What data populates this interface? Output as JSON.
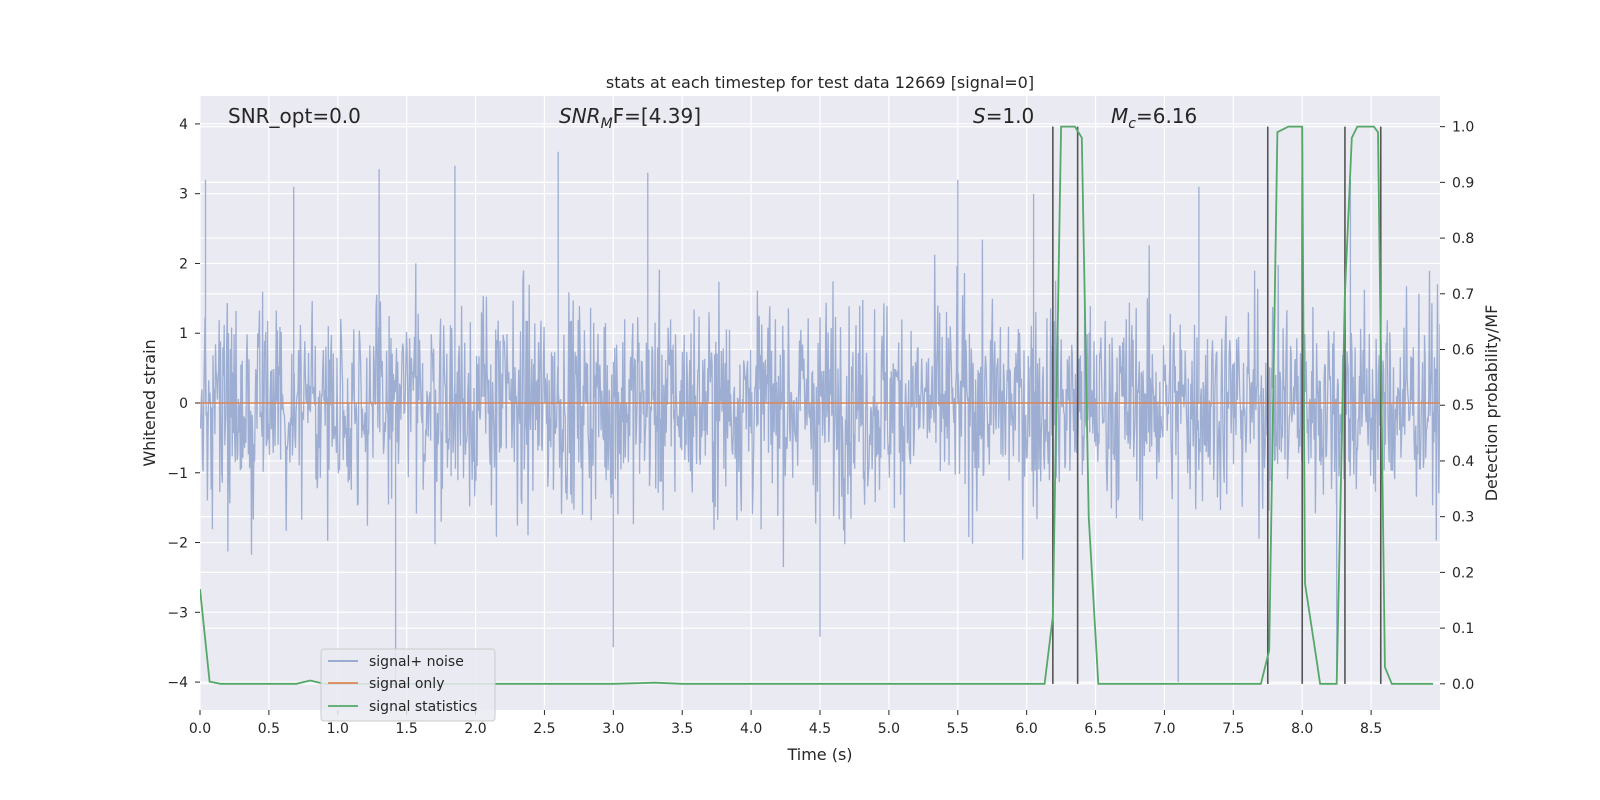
{
  "chart_data": {
    "type": "line",
    "title": "stats at each timestep for test data 12669 [signal=0]",
    "xlabel": "Time (s)",
    "ylabel_left": "Whitened strain",
    "ylabel_right": "Detection probability/MF",
    "xlim": [
      0.0,
      9.0
    ],
    "ylim_left": [
      -4.4,
      4.4
    ],
    "ylim_right": [
      -0.047,
      1.055
    ],
    "x_ticks": [
      0.0,
      0.5,
      1.0,
      1.5,
      2.0,
      2.5,
      3.0,
      3.5,
      4.0,
      4.5,
      5.0,
      5.5,
      6.0,
      6.5,
      7.0,
      7.5,
      8.0,
      8.5
    ],
    "x_tick_labels": [
      "0.0",
      "0.5",
      "1.0",
      "1.5",
      "2.0",
      "2.5",
      "3.0",
      "3.5",
      "4.0",
      "4.5",
      "5.0",
      "5.5",
      "6.0",
      "6.5",
      "7.0",
      "7.5",
      "8.0",
      "8.5"
    ],
    "y_left_ticks": [
      -4,
      -3,
      -2,
      -1,
      0,
      1,
      2,
      3,
      4
    ],
    "y_left_tick_labels": [
      "−4",
      "−3",
      "−2",
      "−1",
      "0",
      "1",
      "2",
      "3",
      "4"
    ],
    "y_right_ticks": [
      0.0,
      0.1,
      0.2,
      0.3,
      0.4,
      0.5,
      0.6,
      0.7,
      0.8,
      0.9,
      1.0
    ],
    "y_right_tick_labels": [
      "0.0",
      "0.1",
      "0.2",
      "0.3",
      "0.4",
      "0.5",
      "0.6",
      "0.7",
      "0.8",
      "0.9",
      "1.0"
    ],
    "grid": true,
    "legend_position": "lower-left",
    "annotations": {
      "snr_opt": "SNR_opt=0.0",
      "snr_mf_base": "SNR",
      "snr_mf_sub": "M",
      "snr_mf_tail": "F=[4.39]",
      "s_base": "S",
      "s_tail": "=1.0",
      "mc_base": "M",
      "mc_sub": "c",
      "mc_tail": "=6.16"
    },
    "series": [
      {
        "name": "signal+ noise",
        "color": "#8fa3cc",
        "kind": "noise",
        "envelope": {
          "typical_min": -2.4,
          "typical_max": 2.4,
          "extreme_min": -4.1,
          "extreme_max": 3.7
        },
        "notable_peaks": [
          [
            0.04,
            3.2
          ],
          [
            0.68,
            3.1
          ],
          [
            1.3,
            3.35
          ],
          [
            1.85,
            3.4
          ],
          [
            2.6,
            3.6
          ],
          [
            3.25,
            3.3
          ],
          [
            5.5,
            3.2
          ],
          [
            6.05,
            3.0
          ],
          [
            7.25,
            3.1
          ],
          [
            8.35,
            3.2
          ]
        ],
        "notable_troughs": [
          [
            1.42,
            -4.05
          ],
          [
            3.0,
            -3.5
          ],
          [
            4.5,
            -3.35
          ],
          [
            7.1,
            -4.0
          ],
          [
            8.25,
            -3.95
          ]
        ]
      },
      {
        "name": "signal only",
        "color": "#dd8452",
        "kind": "flat",
        "x": [
          0.0,
          9.0
        ],
        "y": [
          0.0,
          0.0
        ]
      },
      {
        "name": "signal statistics",
        "color": "#55a868",
        "kind": "line",
        "x": [
          0.0,
          0.07,
          0.15,
          0.3,
          0.5,
          0.7,
          0.8,
          0.9,
          1.2,
          1.6,
          2.0,
          2.5,
          3.0,
          3.3,
          3.5,
          4.0,
          4.5,
          5.0,
          5.5,
          6.0,
          6.13,
          6.19,
          6.25,
          6.35,
          6.4,
          6.45,
          6.52,
          6.6,
          7.0,
          7.5,
          7.7,
          7.76,
          7.82,
          7.9,
          8.0,
          8.02,
          8.1,
          8.13,
          8.2,
          8.25,
          8.31,
          8.36,
          8.4,
          8.52,
          8.55,
          8.6,
          8.65,
          8.8,
          8.95
        ],
        "y": [
          0.17,
          0.004,
          0.0,
          0.0,
          0.0,
          0.0,
          0.006,
          0.0,
          0.0,
          0.0,
          0.0,
          0.0,
          0.0,
          0.002,
          0.0,
          0.0,
          0.0,
          0.0,
          0.0,
          0.0,
          0.0,
          0.12,
          1.0,
          1.0,
          0.98,
          0.3,
          0.0,
          0.0,
          0.0,
          0.0,
          0.0,
          0.06,
          0.99,
          1.0,
          1.0,
          0.18,
          0.05,
          0.0,
          0.0,
          0.0,
          0.7,
          0.98,
          1.0,
          1.0,
          0.99,
          0.03,
          0.0,
          0.0,
          0.0
        ]
      }
    ],
    "vertical_markers": {
      "color": "#555555",
      "x": [
        6.19,
        6.37,
        7.75,
        8.0,
        8.31,
        8.57
      ],
      "y_top": 1.0
    }
  }
}
